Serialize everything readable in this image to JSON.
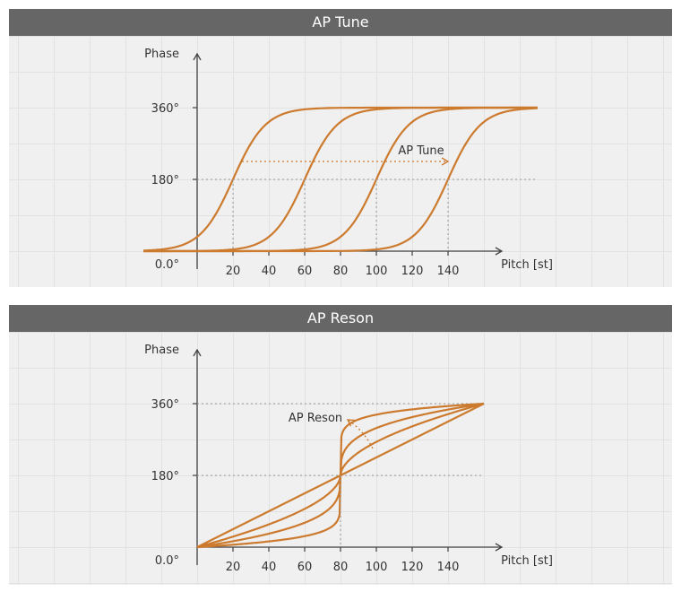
{
  "colors": {
    "curve": "#cc7a2e",
    "header": "#666666",
    "axis": "#444444",
    "guide": "#999999"
  },
  "chart_data": [
    {
      "type": "line",
      "title": "AP Tune",
      "xlabel": "Pitch [st]",
      "ylabel": "Phase",
      "xticks": [
        20,
        40,
        60,
        80,
        100,
        120,
        140
      ],
      "yticks": [
        {
          "value": 0,
          "label": "0.0°"
        },
        {
          "value": 180,
          "label": "180°"
        },
        {
          "value": 360,
          "label": "360°"
        }
      ],
      "xlim": [
        -15,
        170
      ],
      "ylim": [
        0,
        360
      ],
      "grid": true,
      "curve_shape": "sigmoid",
      "series": [
        {
          "center": 20,
          "steepness": 0.11
        },
        {
          "center": 60,
          "steepness": 0.11
        },
        {
          "center": 100,
          "steepness": 0.11
        },
        {
          "center": 140,
          "steepness": 0.11
        }
      ],
      "annotation": {
        "text": "AP Tune",
        "from": 20,
        "to": 140,
        "at": 180
      },
      "guide_line_at": 180
    },
    {
      "type": "line",
      "title": "AP Reson",
      "xlabel": "Pitch [st]",
      "ylabel": "Phase",
      "xticks": [
        20,
        40,
        60,
        80,
        100,
        120,
        140
      ],
      "yticks": [
        {
          "value": 0,
          "label": "0.0°"
        },
        {
          "value": 180,
          "label": "180°"
        },
        {
          "value": 360,
          "label": "360°"
        }
      ],
      "xlim": [
        0,
        140
      ],
      "ylim": [
        0,
        360
      ],
      "grid": true,
      "curve_shape": "resonance",
      "center": 80,
      "series": [
        {
          "exponent": 0.12
        },
        {
          "exponent": 0.3
        },
        {
          "exponent": 0.55
        },
        {
          "exponent": 1.0
        }
      ],
      "annotation": {
        "text": "AP Reson"
      },
      "guide_line_at": 180
    }
  ]
}
